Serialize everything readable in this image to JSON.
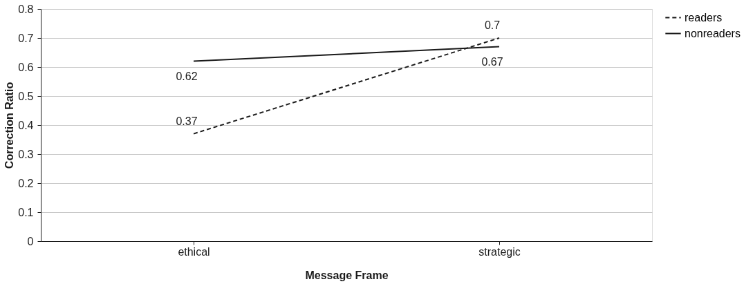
{
  "chart_data": {
    "type": "line",
    "xlabel": "Message Frame",
    "ylabel": "Correction Ratio",
    "categories": [
      "ethical",
      "strategic"
    ],
    "series": [
      {
        "name": "readers",
        "color": "#1a1a1a",
        "values": [
          0.37,
          0.7
        ],
        "line_style": "dashed"
      },
      {
        "name": "nonreaders",
        "color": "#1a1a1a",
        "values": [
          0.62,
          0.67
        ],
        "line_style": "solid"
      }
    ],
    "ylim": [
      0,
      0.8
    ],
    "yticks": [
      0,
      0.1,
      0.2,
      0.3,
      0.4,
      0.5,
      0.6,
      0.7,
      0.8
    ],
    "grid": "y",
    "legend": "right",
    "data_labels": true,
    "marker": "none"
  }
}
